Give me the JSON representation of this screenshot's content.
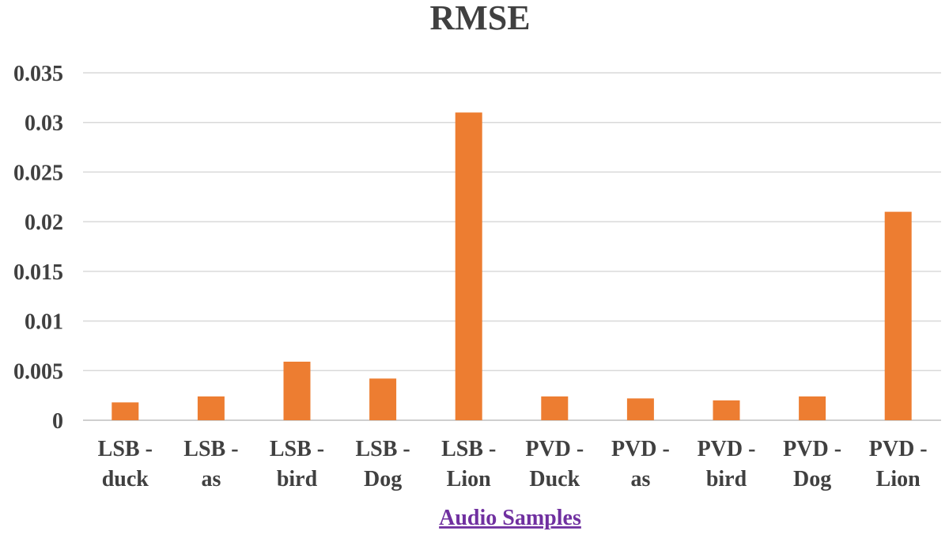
{
  "chart_data": {
    "type": "bar",
    "title": "RMSE",
    "xlabel": "Audio Samples",
    "ylabel": "",
    "ylim": [
      0,
      0.035
    ],
    "yticks": [
      "0",
      "0.005",
      "0.01",
      "0.015",
      "0.02",
      "0.025",
      "0.03",
      "0.035"
    ],
    "ytick_values": [
      0,
      0.005,
      0.01,
      0.015,
      0.02,
      0.025,
      0.03,
      0.035
    ],
    "grid": true,
    "categories": [
      [
        "LSB -",
        "duck"
      ],
      [
        "LSB -",
        "as"
      ],
      [
        "LSB -",
        "bird"
      ],
      [
        "LSB -",
        "Dog"
      ],
      [
        "LSB -",
        "Lion"
      ],
      [
        "PVD -",
        "Duck"
      ],
      [
        "PVD -",
        "as"
      ],
      [
        "PVD -",
        "bird"
      ],
      [
        "PVD -",
        "Dog"
      ],
      [
        "PVD -",
        "Lion"
      ]
    ],
    "values": [
      0.0018,
      0.0024,
      0.0059,
      0.0042,
      0.031,
      0.0024,
      0.0022,
      0.002,
      0.0024,
      0.021
    ],
    "colors": {
      "bar": "#ed7d31",
      "xlabel": "#7030a0"
    }
  }
}
